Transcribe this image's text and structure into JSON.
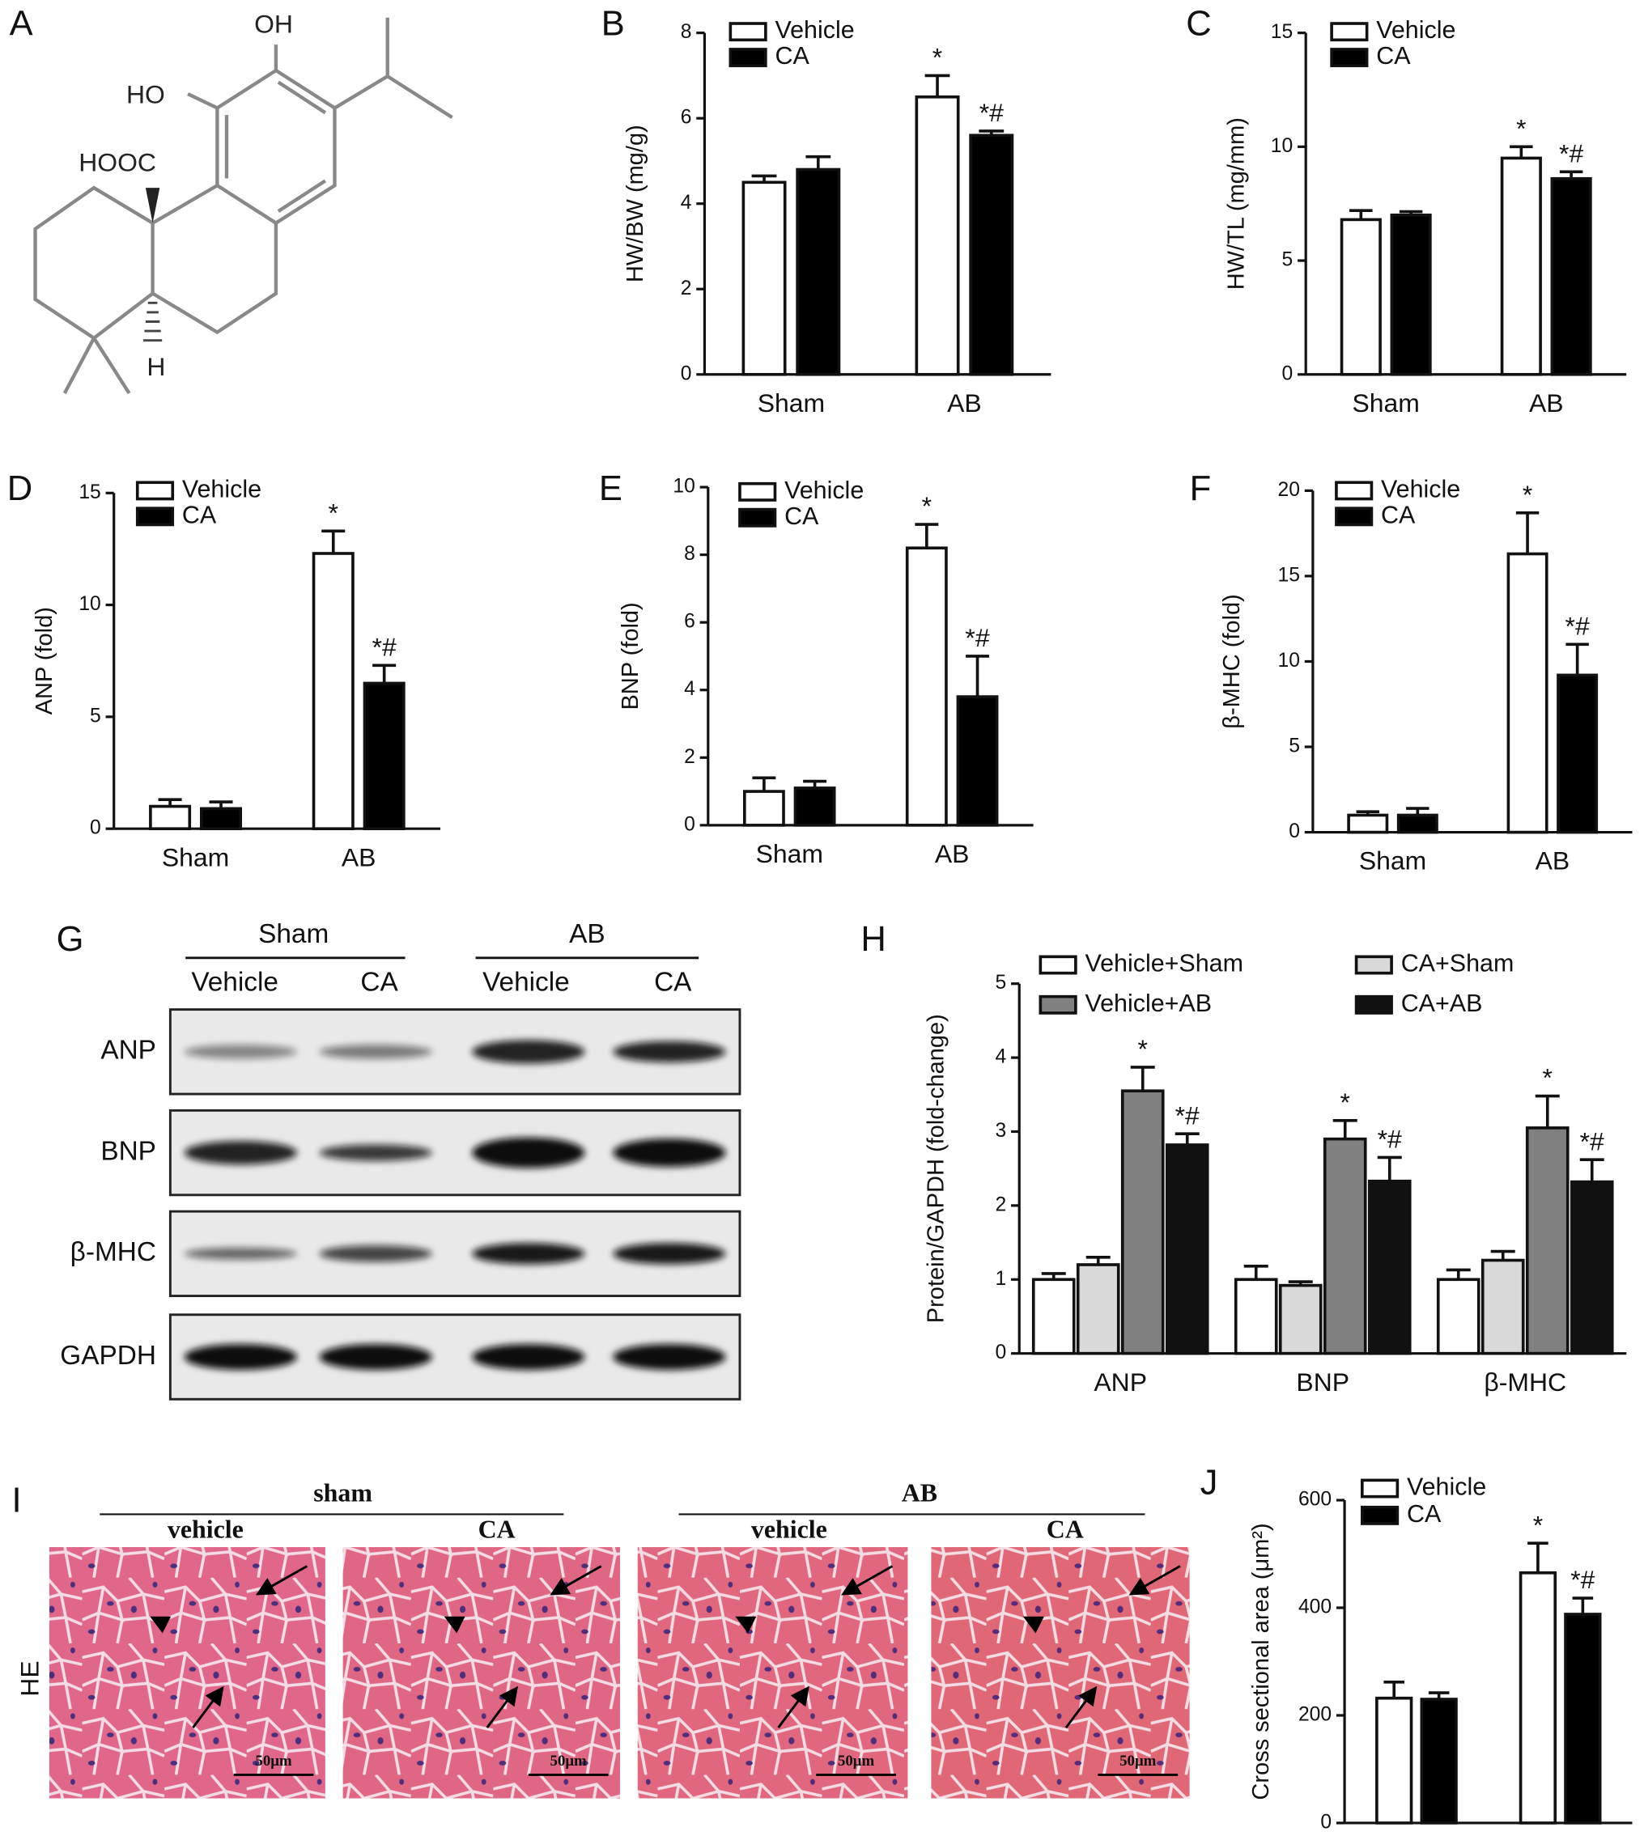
{
  "chart_data": [
    {
      "type": "bar",
      "panel_label": "B",
      "y_label": "HW/BW (mg/g)",
      "categories": [
        "Sham",
        "AB"
      ],
      "ylim": [
        0,
        8
      ],
      "yticks": [
        0,
        2,
        4,
        6,
        8
      ],
      "legend": "upper left",
      "series": [
        {
          "name": "Vehicle",
          "color": "#ffffff",
          "values": [
            4.5,
            6.5
          ],
          "errors": [
            0.15,
            0.5
          ],
          "annotations": [
            null,
            "*"
          ]
        },
        {
          "name": "CA",
          "color": "#000000",
          "values": [
            4.8,
            5.6
          ],
          "errors": [
            0.3,
            0.1
          ],
          "annotations": [
            null,
            "*#"
          ]
        }
      ]
    },
    {
      "type": "bar",
      "panel_label": "C",
      "y_label": "HW/TL (mg/mm)",
      "categories": [
        "Sham",
        "AB"
      ],
      "ylim": [
        0,
        15
      ],
      "yticks": [
        0,
        5,
        10,
        15
      ],
      "legend": "upper left",
      "series": [
        {
          "name": "Vehicle",
          "color": "#ffffff",
          "values": [
            6.8,
            9.5
          ],
          "errors": [
            0.4,
            0.5
          ],
          "annotations": [
            null,
            "*"
          ]
        },
        {
          "name": "CA",
          "color": "#000000",
          "values": [
            7.0,
            8.6
          ],
          "errors": [
            0.15,
            0.3
          ],
          "annotations": [
            null,
            "*#"
          ]
        }
      ]
    },
    {
      "type": "bar",
      "panel_label": "D",
      "y_label": "ANP (fold)",
      "categories": [
        "Sham",
        "AB"
      ],
      "ylim": [
        0,
        15
      ],
      "yticks": [
        0,
        5,
        10,
        15
      ],
      "legend": "upper left",
      "series": [
        {
          "name": "Vehicle",
          "color": "#ffffff",
          "values": [
            1.0,
            12.3
          ],
          "errors": [
            0.3,
            1.0
          ],
          "annotations": [
            null,
            "*"
          ]
        },
        {
          "name": "CA",
          "color": "#000000",
          "values": [
            0.9,
            6.5
          ],
          "errors": [
            0.3,
            0.8
          ],
          "annotations": [
            null,
            "*#"
          ]
        }
      ]
    },
    {
      "type": "bar",
      "panel_label": "E",
      "y_label": "BNP (fold)",
      "categories": [
        "Sham",
        "AB"
      ],
      "ylim": [
        0,
        10
      ],
      "yticks": [
        0,
        2,
        4,
        6,
        8,
        10
      ],
      "legend": "upper left",
      "series": [
        {
          "name": "Vehicle",
          "color": "#ffffff",
          "values": [
            1.0,
            8.2
          ],
          "errors": [
            0.4,
            0.7
          ],
          "annotations": [
            null,
            "*"
          ]
        },
        {
          "name": "CA",
          "color": "#000000",
          "values": [
            1.1,
            3.8
          ],
          "errors": [
            0.2,
            1.2
          ],
          "annotations": [
            null,
            "*#"
          ]
        }
      ]
    },
    {
      "type": "bar",
      "panel_label": "F",
      "y_label": "β-MHC (fold)",
      "categories": [
        "Sham",
        "AB"
      ],
      "ylim": [
        0,
        20
      ],
      "yticks": [
        0,
        5,
        10,
        15,
        20
      ],
      "legend": "upper left",
      "series": [
        {
          "name": "Vehicle",
          "color": "#ffffff",
          "values": [
            1.0,
            16.3
          ],
          "errors": [
            0.2,
            2.4
          ],
          "annotations": [
            null,
            "*"
          ]
        },
        {
          "name": "CA",
          "color": "#000000",
          "values": [
            1.0,
            9.2
          ],
          "errors": [
            0.4,
            1.8
          ],
          "annotations": [
            null,
            "*#"
          ]
        }
      ]
    },
    {
      "type": "bar",
      "panel_label": "H",
      "y_label": "Protein/GAPDH (fold-change)",
      "categories": [
        "ANP",
        "BNP",
        "β-MHC"
      ],
      "ylim": [
        0,
        5
      ],
      "yticks": [
        0,
        1,
        2,
        3,
        4,
        5
      ],
      "legend": "top",
      "series": [
        {
          "name": "Vehicle+Sham",
          "color": "#ffffff",
          "values": [
            1.0,
            1.0,
            1.0
          ],
          "errors": [
            0.08,
            0.18,
            0.13
          ],
          "annotations": [
            null,
            null,
            null
          ]
        },
        {
          "name": "CA+Sham",
          "color": "#d9d9d9",
          "values": [
            1.2,
            0.92,
            1.26
          ],
          "errors": [
            0.1,
            0.05,
            0.12
          ],
          "annotations": [
            null,
            null,
            null
          ]
        },
        {
          "name": "Vehicle+AB",
          "color": "#808080",
          "values": [
            3.55,
            2.9,
            3.05
          ],
          "errors": [
            0.32,
            0.25,
            0.43
          ],
          "annotations": [
            "*",
            "*",
            "*"
          ]
        },
        {
          "name": "CA+AB",
          "color": "#111111",
          "values": [
            2.82,
            2.33,
            2.32
          ],
          "errors": [
            0.15,
            0.32,
            0.3
          ],
          "annotations": [
            "*#",
            "*#",
            "*#"
          ]
        }
      ]
    },
    {
      "type": "bar",
      "panel_label": "J",
      "y_label": "Cross sectional area (μm²)",
      "categories": [
        "Sham",
        "AB"
      ],
      "ylim": [
        0,
        600
      ],
      "yticks": [
        0,
        200,
        400,
        600
      ],
      "legend": "upper left",
      "series": [
        {
          "name": "Vehicle",
          "color": "#ffffff",
          "values": [
            232,
            465
          ],
          "errors": [
            30,
            55
          ],
          "annotations": [
            null,
            "*"
          ]
        },
        {
          "name": "CA",
          "color": "#000000",
          "values": [
            230,
            388
          ],
          "errors": [
            12,
            30
          ],
          "annotations": [
            null,
            "*#"
          ]
        }
      ]
    }
  ],
  "structure": {
    "panel_label": "A",
    "labels": [
      "OH",
      "HO",
      "HOOC",
      "H"
    ]
  },
  "blot": {
    "panel_label": "G",
    "groups": [
      "Sham",
      "AB"
    ],
    "lanes": [
      "Vehicle",
      "CA",
      "Vehicle",
      "CA"
    ],
    "rows": [
      "ANP",
      "BNP",
      "β-MHC",
      "GAPDH"
    ]
  },
  "histology": {
    "panel_label": "I",
    "groups": [
      "sham",
      "AB"
    ],
    "columns": [
      "vehicle",
      "CA",
      "vehicle",
      "CA"
    ],
    "row_label": "HE",
    "scale_bar": "50μm"
  }
}
